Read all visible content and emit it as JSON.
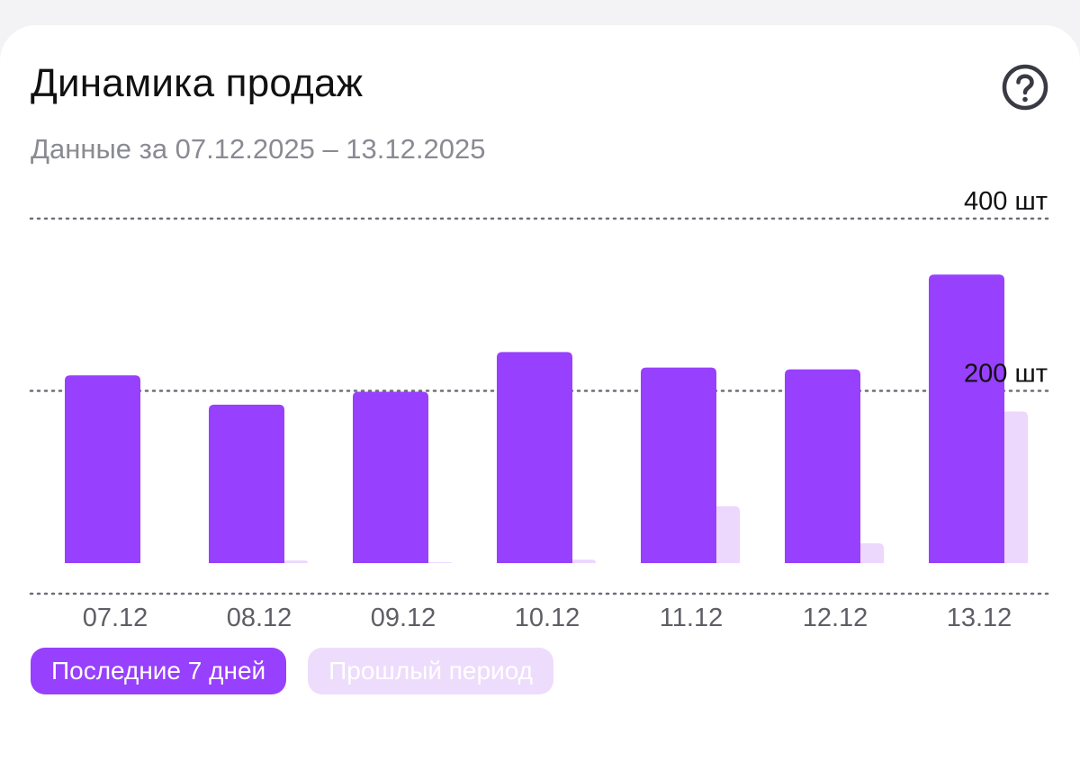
{
  "header": {
    "title": "Динамика продаж",
    "subtitle": "Данные за 07.12.2025 – 13.12.2025",
    "help_icon": "question-circle-icon"
  },
  "legend": {
    "current_label": "Последние 7 дней",
    "previous_label": "Прошлый период"
  },
  "colors": {
    "current": "#9740fd",
    "previous": "#ebd8fc",
    "grid": "#6e6e78",
    "text": "#111111"
  },
  "chart_data": {
    "type": "bar",
    "categories": [
      "07.12",
      "08.12",
      "09.12",
      "10.12",
      "11.12",
      "12.12",
      "13.12"
    ],
    "series": [
      {
        "name": "Последние 7 дней",
        "values": [
          218,
          184,
          199,
          245,
          227,
          225,
          335
        ]
      },
      {
        "name": "Прошлый период",
        "values": [
          0,
          3,
          1,
          4,
          66,
          23,
          176
        ]
      }
    ],
    "ylim": [
      0,
      400
    ],
    "yticks": [
      {
        "value": 400,
        "label": "400 шт"
      },
      {
        "value": 200,
        "label": "200 шт"
      }
    ],
    "grid": true,
    "legend_position": "bottom-left"
  }
}
